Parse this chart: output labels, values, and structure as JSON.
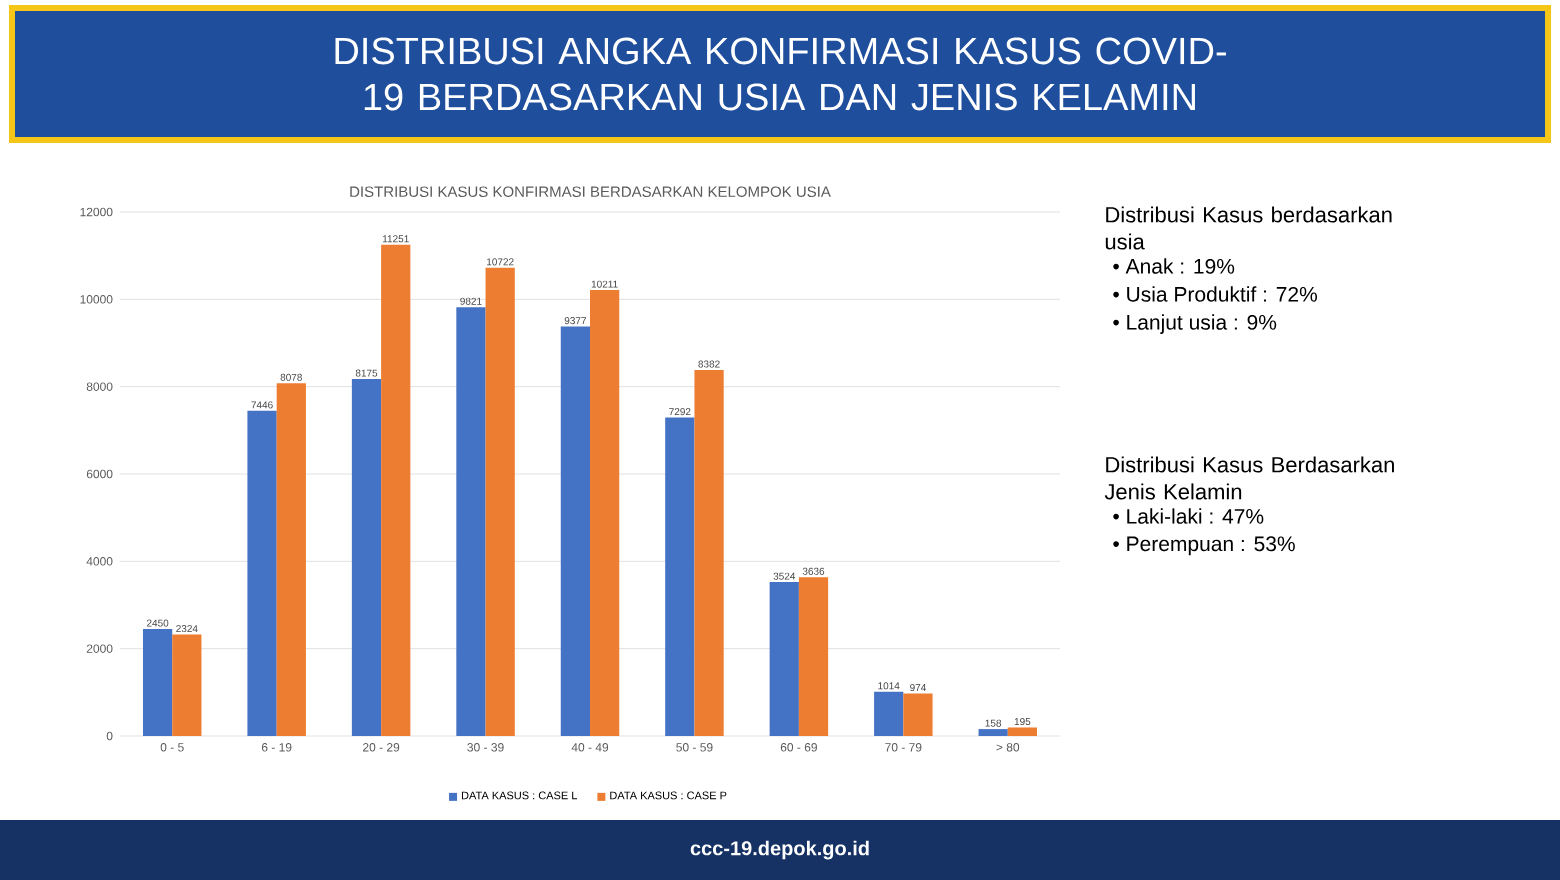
{
  "chart_data": {
    "type": "bar",
    "title": "DISTRIBUSI ANGKA KONFIRMASI KASUS COVID-19 BERDASARKAN USIA DAN JENIS KELAMIN",
    "subtitle": "DISTRIBUSI KASUS KONFIRMASI BERDASARKAN KELOMPOK USIA",
    "categories": [
      "0 - 5",
      "6 - 19",
      "20 - 29",
      "30 - 39",
      "40 - 49",
      "50 - 59",
      "60 - 69",
      "70 - 79",
      "> 80"
    ],
    "series": [
      {
        "name": "DATA KASUS : CASE L",
        "color": "#4472c4",
        "values": [
          2450,
          7446,
          8175,
          9821,
          9377,
          7292,
          3524,
          1014,
          158
        ]
      },
      {
        "name": "DATA KASUS : CASE P",
        "color": "#ed7d31",
        "values": [
          2324,
          8078,
          11251,
          10722,
          10211,
          8382,
          3636,
          974,
          195
        ]
      }
    ],
    "ylim": [
      0,
      12000
    ],
    "yticks": [
      0,
      2000,
      4000,
      6000,
      8000,
      10000,
      12000
    ],
    "grid": "y",
    "legend": "bottom",
    "data_labels": true,
    "annotations": [
      "Distribusi Kasus berdasarkan usia",
      "• Anak : 19%",
      "• Usia Produktif : 72%",
      "• Lanjut usia : 9%",
      "Distribusi Kasus Berdasarkan Jenis Kelamin",
      "• Laki-laki : 47%",
      "• Perempuan : 53%",
      "ccc-19.depok.go.id"
    ]
  }
}
